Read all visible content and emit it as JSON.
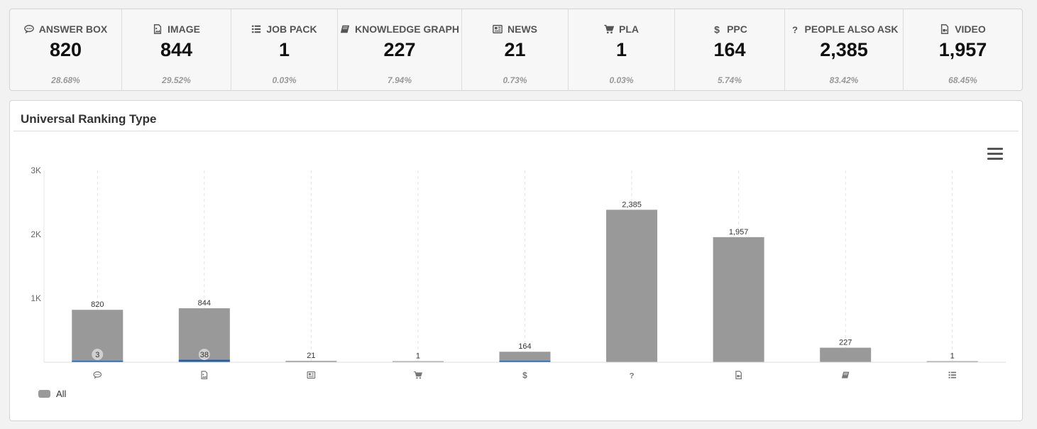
{
  "stats": [
    {
      "key": "answer_box",
      "icon": "speech-bubble-icon",
      "label": "ANSWER BOX",
      "value": "820",
      "percent": "28.68%"
    },
    {
      "key": "image",
      "icon": "image-icon",
      "label": "IMAGE",
      "value": "844",
      "percent": "29.52%"
    },
    {
      "key": "job_pack",
      "icon": "list-icon",
      "label": "JOB PACK",
      "value": "1",
      "percent": "0.03%"
    },
    {
      "key": "knowledge_graph",
      "icon": "book-icon",
      "label": "KNOWLEDGE GRAPH",
      "value": "227",
      "percent": "7.94%"
    },
    {
      "key": "news",
      "icon": "newspaper-icon",
      "label": "NEWS",
      "value": "21",
      "percent": "0.73%"
    },
    {
      "key": "pla",
      "icon": "shopping-cart-icon",
      "label": "PLA",
      "value": "1",
      "percent": "0.03%"
    },
    {
      "key": "ppc",
      "icon": "dollar-icon",
      "label": "PPC",
      "value": "164",
      "percent": "5.74%"
    },
    {
      "key": "paa",
      "icon": "question-icon",
      "label": "PEOPLE ALSO ASK",
      "value": "2,385",
      "percent": "83.42%"
    },
    {
      "key": "video",
      "icon": "video-file-icon",
      "label": "VIDEO",
      "value": "1,957",
      "percent": "68.45%"
    }
  ],
  "panel": {
    "title": "Universal Ranking Type"
  },
  "chart_data": {
    "type": "bar",
    "categories": [
      "answer-box",
      "image",
      "news",
      "pla",
      "ppc",
      "people-also-ask",
      "video",
      "knowledge-graph",
      "job-pack"
    ],
    "category_icons": [
      "speech-bubble-icon",
      "image-icon",
      "newspaper-icon",
      "shopping-cart-icon",
      "dollar-icon",
      "question-icon",
      "video-file-icon",
      "book-icon",
      "list-icon"
    ],
    "series": [
      {
        "name": "All",
        "color": "#999999",
        "values": [
          820,
          844,
          21,
          1,
          164,
          2385,
          1957,
          227,
          1
        ],
        "labels": [
          "820",
          "844",
          "21",
          "1",
          "164",
          "2,385",
          "1,957",
          "227",
          "1"
        ]
      },
      {
        "color": "#1f5fa8",
        "values": [
          3,
          38,
          0,
          0,
          15,
          0,
          0,
          0,
          0
        ],
        "labels": [
          "3",
          "38",
          "",
          "",
          "",
          "",
          "",
          "",
          ""
        ]
      }
    ],
    "ylim": [
      0,
      3000
    ],
    "yticks": [
      {
        "value": 1000,
        "label": "1K"
      },
      {
        "value": 2000,
        "label": "2K"
      },
      {
        "value": 3000,
        "label": "3K"
      }
    ],
    "grid": "vertical-dashed",
    "legend": {
      "position": "bottom-left",
      "items": [
        {
          "label": "All",
          "color": "#999999"
        }
      ]
    }
  }
}
